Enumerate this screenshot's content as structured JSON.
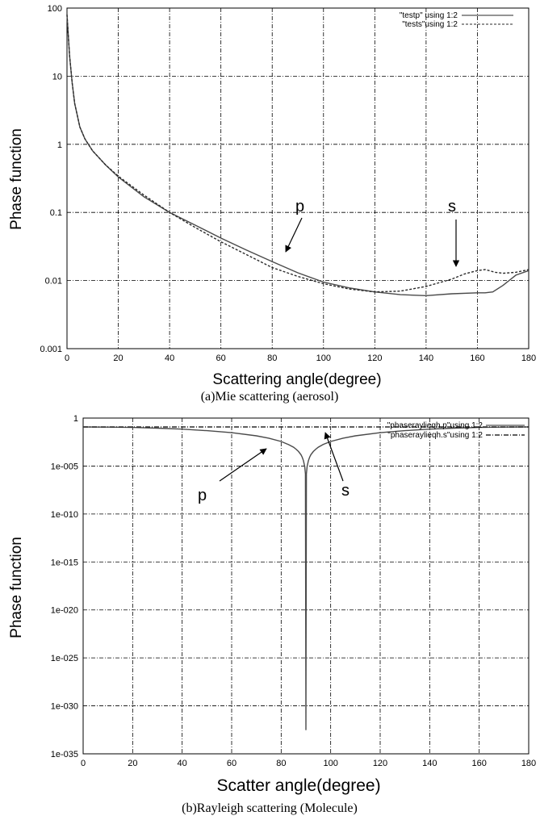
{
  "chart_data": [
    {
      "type": "line",
      "caption": "(a)Mie scattering (aerosol)",
      "xlabel": "Scattering angle(degree)",
      "ylabel": "Phase function",
      "xlim": [
        0,
        180
      ],
      "ylim": [
        0.001,
        100
      ],
      "yscale": "log",
      "grid": true,
      "legend_position": "top-right",
      "x_ticks": [
        "0",
        "20",
        "40",
        "60",
        "80",
        "100",
        "120",
        "140",
        "160",
        "180"
      ],
      "y_ticks": [
        "0.001",
        "0.01",
        "0.1",
        "1",
        "10",
        "100"
      ],
      "series": [
        {
          "name": "\"testp\" using 1:2",
          "style": "solid",
          "x": [
            0,
            1,
            2,
            3,
            5,
            7,
            10,
            15,
            20,
            30,
            40,
            50,
            60,
            70,
            80,
            90,
            100,
            110,
            120,
            130,
            140,
            150,
            160,
            163,
            166,
            170,
            175,
            180
          ],
          "y": [
            80,
            20,
            8,
            4,
            1.8,
            1.2,
            0.8,
            0.5,
            0.33,
            0.17,
            0.1,
            0.065,
            0.042,
            0.028,
            0.019,
            0.013,
            0.0095,
            0.0078,
            0.0068,
            0.0062,
            0.006,
            0.0064,
            0.0066,
            0.0066,
            0.0068,
            0.0085,
            0.012,
            0.014
          ]
        },
        {
          "name": "\"tests\"using 1:2",
          "style": "dashed",
          "x": [
            0,
            1,
            2,
            3,
            5,
            7,
            10,
            15,
            20,
            30,
            40,
            50,
            60,
            70,
            80,
            90,
            100,
            110,
            120,
            130,
            140,
            150,
            155,
            160,
            163,
            167,
            170,
            175,
            180
          ],
          "y": [
            80,
            20,
            8,
            4,
            1.8,
            1.2,
            0.8,
            0.5,
            0.34,
            0.18,
            0.1,
            0.06,
            0.037,
            0.024,
            0.0155,
            0.0115,
            0.009,
            0.0075,
            0.0068,
            0.007,
            0.0082,
            0.0105,
            0.0125,
            0.014,
            0.0145,
            0.0132,
            0.0128,
            0.0132,
            0.0145
          ]
        }
      ],
      "annotations": [
        {
          "text": "p",
          "x": 88,
          "y": 0.02
        },
        {
          "text": "s",
          "x": 152,
          "y": 0.0125
        }
      ]
    },
    {
      "type": "line",
      "caption": "(b)Rayleigh scattering (Molecule)",
      "xlabel": "Scatter angle(degree)",
      "ylabel": "Phase function",
      "xlim": [
        0,
        180
      ],
      "ylim": [
        1e-35,
        1
      ],
      "yscale": "log",
      "grid": true,
      "legend_position": "top-right",
      "x_ticks": [
        "0",
        "20",
        "40",
        "60",
        "80",
        "100",
        "120",
        "140",
        "160",
        "180"
      ],
      "y_ticks": [
        "1e-035",
        "1e-030",
        "1e-025",
        "1e-020",
        "1e-015",
        "1e-010",
        "1e-005",
        "1"
      ],
      "series": [
        {
          "name": "\"phaseraylieqh.p\"using 1:2",
          "style": "solid",
          "x": [
            0,
            10,
            20,
            30,
            40,
            50,
            60,
            70,
            75,
            80,
            83,
            85,
            86,
            87,
            88,
            88.5,
            89,
            89.5,
            89.8,
            90,
            90.2,
            90.5,
            91,
            91.5,
            92,
            93,
            94,
            95,
            97,
            100,
            105,
            110,
            120,
            130,
            140,
            150,
            160,
            170,
            180
          ],
          "y": [
            0.119,
            0.115,
            0.105,
            0.089,
            0.07,
            0.049,
            0.03,
            0.014,
            0.008,
            0.0036,
            0.0017,
            0.00091,
            0.00058,
            0.00033,
            0.00015,
            8.3e-05,
            3.7e-05,
            9.1e-06,
            1.5e-06,
            3e-33,
            1.5e-06,
            9.1e-06,
            3.7e-05,
            8.3e-05,
            0.00015,
            0.00033,
            0.00058,
            0.00091,
            0.0018,
            0.0036,
            0.008,
            0.014,
            0.03,
            0.049,
            0.07,
            0.089,
            0.105,
            0.115,
            0.119
          ]
        },
        {
          "name": "\"phaseraylieqh.s\"using 1:2",
          "style": "dash-dot",
          "x": [
            0,
            180
          ],
          "y": [
            0.119,
            0.119
          ]
        }
      ],
      "annotations": [
        {
          "text": "p",
          "x": 76,
          "y": 3e-05
        },
        {
          "text": "s",
          "x": 100,
          "y": 0.05
        }
      ]
    }
  ]
}
